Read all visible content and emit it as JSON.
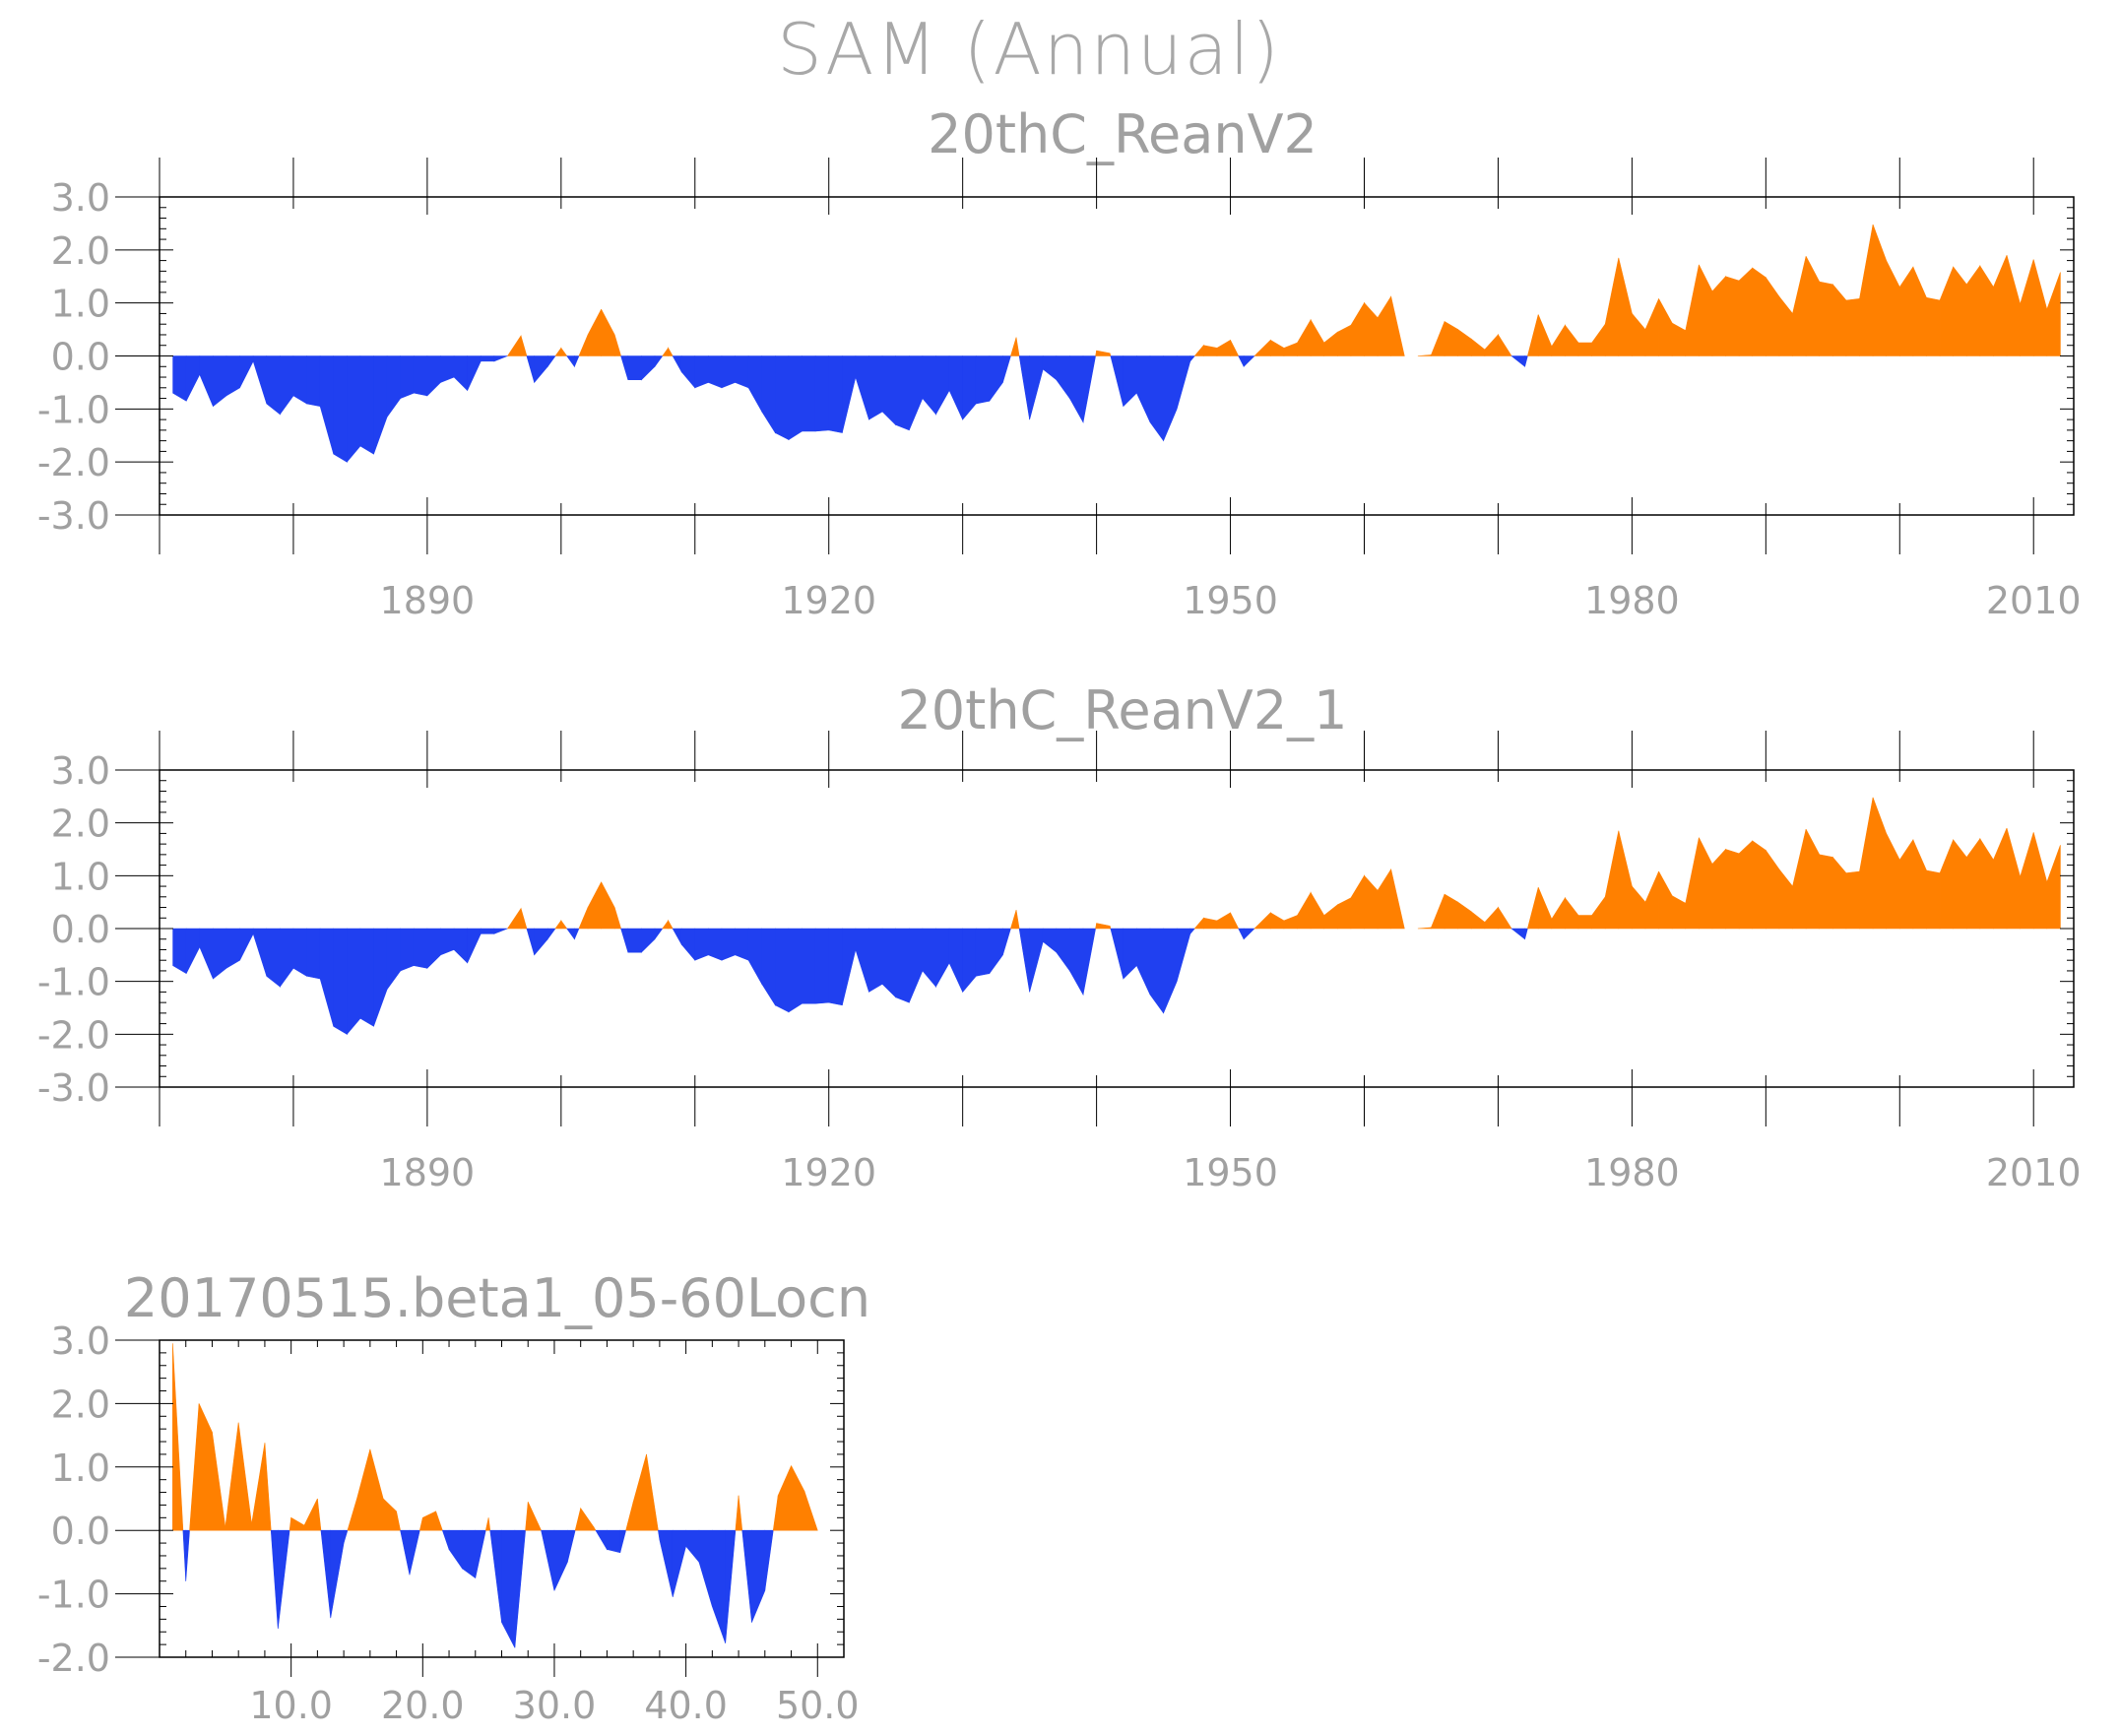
{
  "title": "SAM (Annual)",
  "colors": {
    "positive": "#ff8000",
    "negative": "#2040f0",
    "axis": "#000000",
    "text": "#a0a0a0"
  },
  "chart_data": [
    {
      "type": "area",
      "title": "20thC_ReanV2",
      "xlabel": "",
      "ylabel": "",
      "ylim": [
        -3,
        3
      ],
      "yticks": [
        -3,
        -2,
        -1,
        0,
        1,
        2,
        3
      ],
      "ytick_labels": [
        "-3.0",
        "-2.0",
        "-1.0",
        "0.0",
        "1.0",
        "2.0",
        "3.0"
      ],
      "xlim": [
        1870,
        2013
      ],
      "xticks": [
        1890,
        1920,
        1950,
        1980,
        2010
      ],
      "xtick_labels": [
        "1890",
        "1920",
        "1950",
        "1980",
        "2010"
      ],
      "x": [
        1871,
        1872,
        1873,
        1874,
        1875,
        1876,
        1877,
        1878,
        1879,
        1880,
        1881,
        1882,
        1883,
        1884,
        1885,
        1886,
        1887,
        1888,
        1889,
        1890,
        1891,
        1892,
        1893,
        1894,
        1895,
        1896,
        1897,
        1898,
        1899,
        1900,
        1901,
        1902,
        1903,
        1904,
        1905,
        1906,
        1907,
        1908,
        1909,
        1910,
        1911,
        1912,
        1913,
        1914,
        1915,
        1916,
        1917,
        1918,
        1919,
        1920,
        1921,
        1922,
        1923,
        1924,
        1925,
        1926,
        1927,
        1928,
        1929,
        1930,
        1931,
        1932,
        1933,
        1934,
        1935,
        1936,
        1937,
        1938,
        1939,
        1940,
        1941,
        1942,
        1943,
        1944,
        1945,
        1946,
        1947,
        1948,
        1949,
        1950,
        1951,
        1952,
        1953,
        1954,
        1955,
        1956,
        1957,
        1958,
        1959,
        1960,
        1961,
        1962,
        1963,
        1964,
        1965,
        1966,
        1967,
        1968,
        1969,
        1970,
        1971,
        1972,
        1973,
        1974,
        1975,
        1976,
        1977,
        1978,
        1979,
        1980,
        1981,
        1982,
        1983,
        1984,
        1985,
        1986,
        1987,
        1988,
        1989,
        1990,
        1991,
        1992,
        1993,
        1994,
        1995,
        1996,
        1997,
        1998,
        1999,
        2000,
        2001,
        2002,
        2003,
        2004,
        2005,
        2006,
        2007,
        2008,
        2009,
        2010,
        2011,
        2012
      ],
      "values": [
        -0.7,
        -0.85,
        -0.35,
        -0.95,
        -0.75,
        -0.6,
        -0.1,
        -0.9,
        -1.1,
        -0.75,
        -0.9,
        -0.95,
        -1.85,
        -2.0,
        -1.7,
        -1.85,
        -1.15,
        -0.8,
        -0.7,
        -0.75,
        -0.5,
        -0.4,
        -0.65,
        -0.1,
        -0.1,
        0.0,
        0.38,
        -0.5,
        -0.2,
        0.15,
        -0.2,
        0.4,
        0.88,
        0.4,
        -0.45,
        -0.45,
        -0.2,
        0.15,
        -0.3,
        -0.6,
        -0.5,
        -0.6,
        -0.5,
        -0.6,
        -1.05,
        -1.45,
        -1.58,
        -1.42,
        -1.42,
        -1.4,
        -1.45,
        -0.4,
        -1.2,
        -1.05,
        -1.3,
        -1.4,
        -0.8,
        -1.1,
        -0.65,
        -1.2,
        -0.9,
        -0.85,
        -0.5,
        0.35,
        -1.2,
        -0.25,
        -0.45,
        -0.8,
        -1.25,
        0.1,
        0.05,
        -0.95,
        -0.7,
        -1.25,
        -1.6,
        -1.0,
        -0.1,
        0.2,
        0.15,
        0.3,
        -0.2,
        0.05,
        0.3,
        0.15,
        0.25,
        0.68,
        0.25,
        0.45,
        0.58,
        1.0,
        0.72,
        1.12,
        0.0,
        0.0,
        0.02,
        0.65,
        0.5,
        0.32,
        0.12,
        0.4,
        0.0,
        -0.2,
        0.78,
        0.18,
        0.58,
        0.25,
        0.25,
        0.6,
        1.85,
        0.8,
        0.5,
        1.08,
        0.62,
        0.48,
        1.72,
        1.22,
        1.5,
        1.42,
        1.66,
        1.48,
        1.12,
        0.8,
        1.88,
        1.4,
        1.35,
        1.05,
        1.08,
        2.48,
        1.8,
        1.3,
        1.68,
        1.1,
        1.05,
        1.68,
        1.35,
        1.7,
        1.3,
        1.9,
        0.98,
        1.82,
        0.88,
        1.58
      ]
    },
    {
      "type": "area",
      "title": "20thC_ReanV2_1",
      "xlabel": "",
      "ylabel": "",
      "ylim": [
        -3,
        3
      ],
      "yticks": [
        -3,
        -2,
        -1,
        0,
        1,
        2,
        3
      ],
      "ytick_labels": [
        "-3.0",
        "-2.0",
        "-1.0",
        "0.0",
        "1.0",
        "2.0",
        "3.0"
      ],
      "xlim": [
        1870,
        2013
      ],
      "xticks": [
        1890,
        1920,
        1950,
        1980,
        2010
      ],
      "xtick_labels": [
        "1890",
        "1920",
        "1950",
        "1980",
        "2010"
      ],
      "x": [
        1871,
        1872,
        1873,
        1874,
        1875,
        1876,
        1877,
        1878,
        1879,
        1880,
        1881,
        1882,
        1883,
        1884,
        1885,
        1886,
        1887,
        1888,
        1889,
        1890,
        1891,
        1892,
        1893,
        1894,
        1895,
        1896,
        1897,
        1898,
        1899,
        1900,
        1901,
        1902,
        1903,
        1904,
        1905,
        1906,
        1907,
        1908,
        1909,
        1910,
        1911,
        1912,
        1913,
        1914,
        1915,
        1916,
        1917,
        1918,
        1919,
        1920,
        1921,
        1922,
        1923,
        1924,
        1925,
        1926,
        1927,
        1928,
        1929,
        1930,
        1931,
        1932,
        1933,
        1934,
        1935,
        1936,
        1937,
        1938,
        1939,
        1940,
        1941,
        1942,
        1943,
        1944,
        1945,
        1946,
        1947,
        1948,
        1949,
        1950,
        1951,
        1952,
        1953,
        1954,
        1955,
        1956,
        1957,
        1958,
        1959,
        1960,
        1961,
        1962,
        1963,
        1964,
        1965,
        1966,
        1967,
        1968,
        1969,
        1970,
        1971,
        1972,
        1973,
        1974,
        1975,
        1976,
        1977,
        1978,
        1979,
        1980,
        1981,
        1982,
        1983,
        1984,
        1985,
        1986,
        1987,
        1988,
        1989,
        1990,
        1991,
        1992,
        1993,
        1994,
        1995,
        1996,
        1997,
        1998,
        1999,
        2000,
        2001,
        2002,
        2003,
        2004,
        2005,
        2006,
        2007,
        2008,
        2009,
        2010,
        2011,
        2012
      ],
      "values": [
        -0.7,
        -0.85,
        -0.35,
        -0.95,
        -0.75,
        -0.6,
        -0.1,
        -0.9,
        -1.1,
        -0.75,
        -0.9,
        -0.95,
        -1.85,
        -2.0,
        -1.7,
        -1.85,
        -1.15,
        -0.8,
        -0.7,
        -0.75,
        -0.5,
        -0.4,
        -0.65,
        -0.1,
        -0.1,
        0.0,
        0.38,
        -0.5,
        -0.2,
        0.15,
        -0.2,
        0.4,
        0.88,
        0.4,
        -0.45,
        -0.45,
        -0.2,
        0.15,
        -0.3,
        -0.6,
        -0.5,
        -0.6,
        -0.5,
        -0.6,
        -1.05,
        -1.45,
        -1.58,
        -1.42,
        -1.42,
        -1.4,
        -1.45,
        -0.4,
        -1.2,
        -1.05,
        -1.3,
        -1.4,
        -0.8,
        -1.1,
        -0.65,
        -1.2,
        -0.9,
        -0.85,
        -0.5,
        0.35,
        -1.2,
        -0.25,
        -0.45,
        -0.8,
        -1.25,
        0.1,
        0.05,
        -0.95,
        -0.7,
        -1.25,
        -1.6,
        -1.0,
        -0.1,
        0.2,
        0.15,
        0.3,
        -0.2,
        0.05,
        0.3,
        0.15,
        0.25,
        0.68,
        0.25,
        0.45,
        0.58,
        1.0,
        0.72,
        1.12,
        0.0,
        0.0,
        0.02,
        0.65,
        0.5,
        0.32,
        0.12,
        0.4,
        0.0,
        -0.2,
        0.78,
        0.18,
        0.58,
        0.25,
        0.25,
        0.6,
        1.85,
        0.8,
        0.5,
        1.08,
        0.62,
        0.48,
        1.72,
        1.22,
        1.5,
        1.42,
        1.66,
        1.48,
        1.12,
        0.8,
        1.88,
        1.4,
        1.35,
        1.05,
        1.08,
        2.48,
        1.8,
        1.3,
        1.68,
        1.1,
        1.05,
        1.68,
        1.35,
        1.7,
        1.3,
        1.9,
        0.98,
        1.82,
        0.88,
        1.58
      ]
    },
    {
      "type": "area",
      "title": "20170515.beta1_05-60Locn",
      "xlabel": "",
      "ylabel": "",
      "ylim": [
        -2,
        3
      ],
      "yticks": [
        -2,
        -1,
        0,
        1,
        2,
        3
      ],
      "ytick_labels": [
        "-2.0",
        "-1.0",
        "0.0",
        "1.0",
        "2.0",
        "3.0"
      ],
      "xlim": [
        0,
        52
      ],
      "xticks": [
        10,
        20,
        30,
        40,
        50
      ],
      "xtick_labels": [
        "10.0",
        "20.0",
        "30.0",
        "40.0",
        "50.0"
      ],
      "x": [
        1,
        2,
        3,
        4,
        5,
        6,
        7,
        8,
        9,
        10,
        11,
        12,
        13,
        14,
        15,
        16,
        17,
        18,
        19,
        20,
        21,
        22,
        23,
        24,
        25,
        26,
        27,
        28,
        29,
        30,
        31,
        32,
        33,
        34,
        35,
        36,
        37,
        38,
        39,
        40,
        41,
        42,
        43,
        44,
        45,
        46,
        47,
        48,
        49,
        50
      ],
      "values": [
        2.95,
        -0.8,
        2.0,
        1.55,
        0.05,
        1.7,
        0.1,
        1.38,
        -1.55,
        0.2,
        0.08,
        0.5,
        -1.38,
        -0.2,
        0.5,
        1.28,
        0.5,
        0.3,
        -0.7,
        0.2,
        0.3,
        -0.3,
        -0.6,
        -0.75,
        0.2,
        -1.45,
        -1.85,
        0.45,
        0.0,
        -0.95,
        -0.5,
        0.35,
        0.05,
        -0.3,
        -0.35,
        0.45,
        1.2,
        -0.15,
        -1.05,
        -0.25,
        -0.5,
        -1.2,
        -1.78,
        0.55,
        -1.45,
        -0.95,
        0.55,
        1.02,
        0.62,
        0.0
      ]
    }
  ]
}
